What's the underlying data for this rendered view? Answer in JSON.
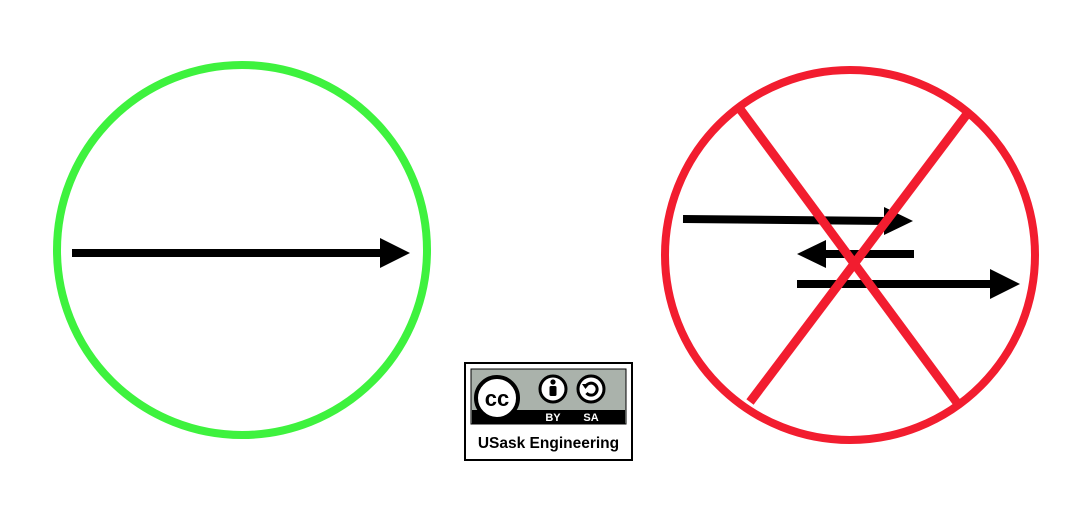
{
  "colors": {
    "correct_circle": "#3ef23e",
    "incorrect_circle": "#f21d2f",
    "arrow": "#000000",
    "badge_background": "#ffffff",
    "badge_border": "#000000",
    "cc_band": "#aab2ab",
    "cc_dark": "#000000"
  },
  "badge": {
    "cc_logo_text": "cc",
    "by_label": "BY",
    "sa_label": "SA",
    "institution": "USask Engineering"
  },
  "icons": {
    "correct_symbol": "single-arrow-in-circle",
    "incorrect_symbol": "multiple-arrows-crossed-out",
    "license_by": "person-icon",
    "license_sa": "share-alike-icon"
  }
}
